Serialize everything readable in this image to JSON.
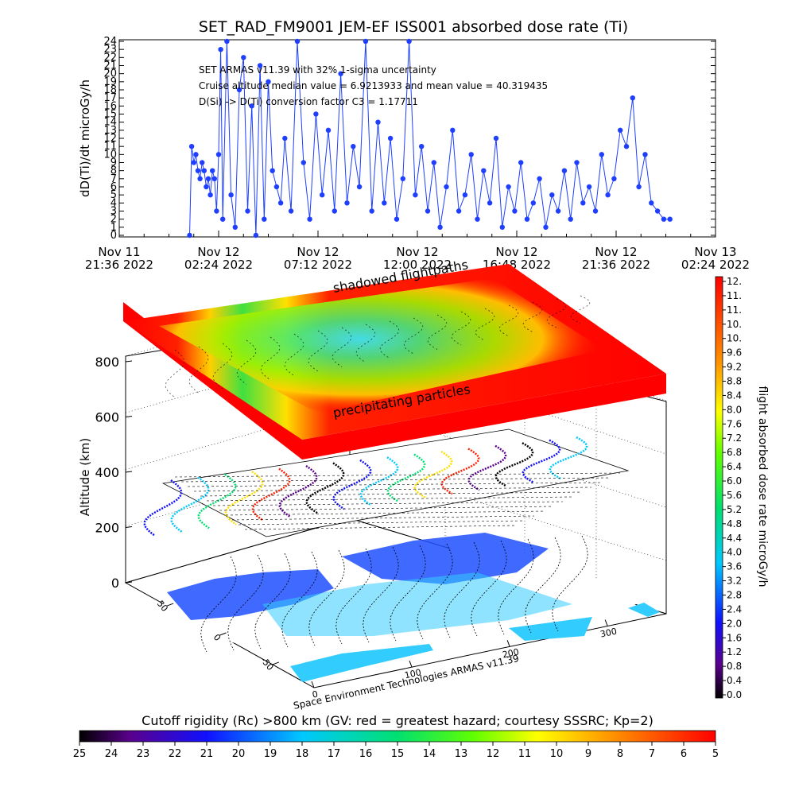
{
  "chart_data": [
    {
      "type": "line",
      "title": "SET_RAD_FM9001  JEM-EF ISS001 absorbed dose rate (Ti)",
      "ylabel": "dD(Ti)/dt microGy/h",
      "ylim": [
        0,
        24
      ],
      "yticks": [
        "0",
        "1",
        "2",
        "3",
        "4",
        "5",
        "6",
        "7",
        "8",
        "9",
        "10",
        "11",
        "12",
        "13",
        "14",
        "15",
        "16",
        "17",
        "18",
        "19",
        "20",
        "21",
        "22",
        "23",
        "24"
      ],
      "xticks": [
        {
          "line1": "Nov 11",
          "line2": "21:36 2022"
        },
        {
          "line1": "Nov 12",
          "line2": "02:24 2022"
        },
        {
          "line1": "Nov 12",
          "line2": "07:12 2022"
        },
        {
          "line1": "Nov 12",
          "line2": "12:00 2022"
        },
        {
          "line1": "Nov 12",
          "line2": "16:48 2022"
        },
        {
          "line1": "Nov 12",
          "line2": "21:36 2022"
        },
        {
          "line1": "Nov 13",
          "line2": "02:24 2022"
        }
      ],
      "xlim_hours": [
        0,
        28.8
      ],
      "annotations": [
        "SET ARMAS v11.39 with 32% 1-sigma uncertainty",
        "Cruise altitude  median value = 6.9213933 and mean value = 40.319435",
        "D(Si) -> D(Ti) conversion factor C3 = 1.17711"
      ],
      "series": [
        {
          "color": "#1f3fff",
          "x": [
            3.4,
            3.5,
            3.6,
            3.7,
            3.8,
            3.9,
            4.0,
            4.1,
            4.2,
            4.3,
            4.4,
            4.5,
            4.6,
            4.7,
            4.8,
            4.9,
            5.0,
            5.2,
            5.4,
            5.6,
            5.8,
            6.0,
            6.2,
            6.4,
            6.6,
            6.8,
            7.0,
            7.2,
            7.4,
            7.6,
            7.8,
            8.0,
            8.3,
            8.6,
            8.9,
            9.2,
            9.5,
            9.8,
            10.1,
            10.4,
            10.7,
            11.0,
            11.3,
            11.6,
            11.9,
            12.2,
            12.5,
            12.8,
            13.1,
            13.4,
            13.7,
            14.0,
            14.3,
            14.6,
            14.9,
            15.2,
            15.5,
            15.8,
            16.1,
            16.4,
            16.7,
            17.0,
            17.3,
            17.6,
            17.9,
            18.2,
            18.5,
            18.8,
            19.1,
            19.4,
            19.7,
            20.0,
            20.3,
            20.6,
            20.9,
            21.2,
            21.5,
            21.8,
            22.1,
            22.4,
            22.7,
            23.0,
            23.3,
            23.6,
            23.9,
            24.2,
            24.5,
            24.8,
            25.1,
            25.4,
            25.7,
            26.0,
            26.3,
            26.6
          ],
          "y": [
            0,
            11,
            9,
            10,
            8,
            7,
            9,
            8,
            6,
            7,
            5,
            8,
            7,
            3,
            10,
            23,
            2,
            24,
            5,
            1,
            18,
            22,
            3,
            16,
            0,
            21,
            2,
            19,
            8,
            6,
            4,
            12,
            3,
            24,
            9,
            2,
            15,
            5,
            13,
            3,
            20,
            4,
            11,
            6,
            24,
            3,
            14,
            4,
            12,
            2,
            7,
            24,
            5,
            11,
            3,
            9,
            1,
            6,
            13,
            3,
            5,
            10,
            2,
            8,
            4,
            12,
            1,
            6,
            3,
            9,
            2,
            4,
            7,
            1,
            5,
            3,
            8,
            2,
            9,
            4,
            6,
            3,
            10,
            5,
            7,
            13,
            11,
            17,
            6,
            10,
            4,
            3,
            2,
            2
          ]
        }
      ]
    },
    {
      "type": "heatmap",
      "ylabel": "Altitude (km)",
      "zticks": [
        "0",
        "200",
        "400",
        "600",
        "800"
      ],
      "yaxis_ticks": [
        "-50",
        "0",
        "50"
      ],
      "xaxis_ticks": [
        "0",
        "100",
        "200",
        "300"
      ],
      "labels": {
        "upper": "shadowed flightpaths",
        "lower": "precipitating particles"
      },
      "credit": "Space Environment Technologies ARMAS v11.39"
    },
    {
      "type": "colorbar",
      "label": "flight absorbed dose rate microGy/h",
      "ticks": [
        "12.",
        "11.",
        "11.",
        "10.",
        "10.",
        "9.6",
        "9.2",
        "8.8",
        "8.4",
        "8.0",
        "7.6",
        "7.2",
        "6.8",
        "6.4",
        "6.0",
        "5.6",
        "5.2",
        "4.8",
        "4.4",
        "4.0",
        "3.6",
        "3.2",
        "2.8",
        "2.4",
        "2.0",
        "1.6",
        "1.2",
        "0.8",
        "0.4",
        "0.0"
      ]
    },
    {
      "type": "colorbar",
      "label": "Cutoff rigidity (Rc) >800 km (GV: red = greatest hazard; courtesy SSSRC; Kp=2)",
      "ticks": [
        "25",
        "24",
        "23",
        "22",
        "21",
        "20",
        "19",
        "18",
        "17",
        "16",
        "15",
        "14",
        "13",
        "12",
        "11",
        "10",
        "9",
        "8",
        "7",
        "6",
        "5"
      ]
    }
  ],
  "colors": {
    "series": "#1f3fff",
    "hot": "#ff0000",
    "ocean": "#33ccff",
    "land": "#1f4fff"
  }
}
